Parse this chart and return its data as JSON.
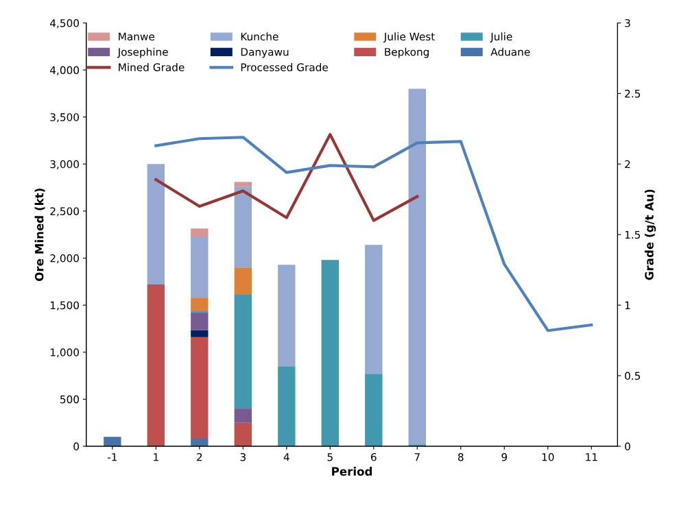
{
  "chart_data": {
    "type": "bar",
    "stacked": true,
    "xlabel": "Period",
    "ylabel": "Ore Mined (kt)",
    "y2label": "Grade (g/t Au)",
    "categories": [
      "-1",
      "1",
      "2",
      "3",
      "4",
      "5",
      "6",
      "7",
      "8",
      "9",
      "10",
      "11"
    ],
    "ylim": [
      0,
      4500
    ],
    "yticks": [
      {
        "value": 0,
        "label": "0"
      },
      {
        "value": 500,
        "label": "500"
      },
      {
        "value": 1000,
        "label": "1,000"
      },
      {
        "value": 1500,
        "label": "1,500"
      },
      {
        "value": 2000,
        "label": "2,000"
      },
      {
        "value": 2500,
        "label": "2,500"
      },
      {
        "value": 3000,
        "label": "3,000"
      },
      {
        "value": 3500,
        "label": "3,500"
      },
      {
        "value": 4000,
        "label": "4,000"
      },
      {
        "value": 4500,
        "label": "4,500"
      }
    ],
    "y2lim": [
      0,
      3
    ],
    "y2ticks": [
      0,
      0.5,
      1,
      1.5,
      2,
      2.5,
      3
    ],
    "legend": "top",
    "grid": false,
    "series": [
      {
        "name": "Aduane",
        "color": "#4673aa",
        "values": [
          100,
          null,
          80,
          null,
          null,
          null,
          null,
          null,
          null,
          null,
          null,
          null
        ]
      },
      {
        "name": "Bepkong",
        "color": "#c0504d",
        "values": [
          null,
          1720,
          1080,
          250,
          null,
          null,
          null,
          null,
          null,
          null,
          null,
          null
        ]
      },
      {
        "name": "Danyawu",
        "color": "#002060",
        "values": [
          null,
          null,
          75,
          null,
          null,
          null,
          null,
          null,
          null,
          null,
          null,
          null
        ]
      },
      {
        "name": "Josephine",
        "color": "#765a90",
        "values": [
          null,
          null,
          185,
          150,
          null,
          null,
          null,
          null,
          null,
          null,
          null,
          null
        ]
      },
      {
        "name": "Julie",
        "color": "#4198af",
        "values": [
          null,
          null,
          15,
          1210,
          850,
          1980,
          770,
          20,
          null,
          null,
          null,
          null
        ]
      },
      {
        "name": "Julie West",
        "color": "#dd8139",
        "values": [
          null,
          null,
          145,
          290,
          null,
          null,
          null,
          null,
          null,
          null,
          null,
          null
        ]
      },
      {
        "name": "Kunche",
        "color": "#95a9d2",
        "values": [
          null,
          1280,
          650,
          860,
          1080,
          null,
          1370,
          3780,
          null,
          null,
          null,
          null
        ]
      },
      {
        "name": "Manwe",
        "color": "#d99594",
        "values": [
          null,
          null,
          85,
          50,
          null,
          null,
          null,
          null,
          null,
          null,
          null,
          null
        ]
      },
      {
        "name": "Mined Grade",
        "type": "line",
        "axis": "y2",
        "color": "#953735",
        "values": [
          null,
          1.89,
          1.7,
          1.81,
          1.62,
          2.21,
          1.6,
          1.77,
          null,
          null,
          null,
          null
        ]
      },
      {
        "name": "Processed Grade",
        "type": "line",
        "axis": "y2",
        "color": "#4f81bd",
        "values": [
          null,
          2.13,
          2.18,
          2.19,
          1.94,
          1.99,
          1.98,
          2.15,
          2.16,
          1.29,
          0.82,
          0.86
        ]
      }
    ]
  }
}
